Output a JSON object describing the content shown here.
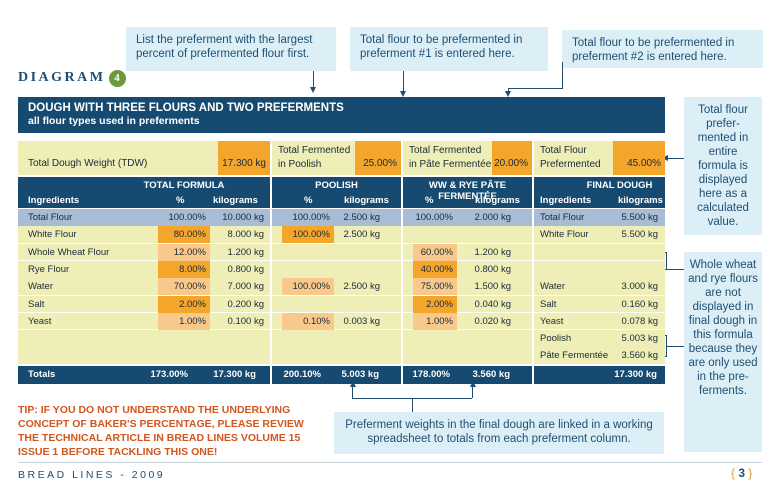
{
  "callouts": {
    "largest_first": "List the preferment with the largest percent of prefermented flour first.",
    "preferment1": "Total flour to be prefermented in preferment #1 is entered here.",
    "preferment2": "Total flour to be prefermented in preferment #2 is entered here.",
    "total_preferment": "Total flour prefer-mented in entire formula is displayed here as a calculated value.",
    "not_displayed": "Whole wheat and rye flours are not displayed in final dough in this formula because they are only used in the pre-ferments.",
    "linked": "Preferment weights in the final dough are linked in a working spreadsheet to totals from each preferment column."
  },
  "diagram": {
    "label": "DIAGRAM",
    "number": "4"
  },
  "title": {
    "main": "DOUGH WITH THREE FLOURS AND TWO PREFERMENTS",
    "sub": "all flour types used in preferments"
  },
  "summary": {
    "tdw_label": "Total Dough Weight (TDW)",
    "tdw_value": "17.300 kg",
    "poolish_label_1": "Total Fermented",
    "poolish_label_2": "in Poolish",
    "poolish_value": "25.00%",
    "pf_label_1": "Total Fermented",
    "pf_label_2": "in Pâte Fermentée",
    "pf_value": "20.00%",
    "tf_label_1": "Total Flour",
    "tf_label_2": "Prefermented",
    "tf_value": "45.00%"
  },
  "headers": {
    "ingredients": "Ingredients",
    "total_formula": "TOTAL FORMULA",
    "poolish": "POOLISH",
    "pate": "WW & RYE PÂTE FERMENTÉE",
    "final": "FINAL DOUGH",
    "pct": "%",
    "kg": "kilograms"
  },
  "rows": [
    {
      "name": "Total Flour",
      "tf_pct": "100.00%",
      "tf_kg": "10.000 kg",
      "p_pct": "100.00%",
      "p_kg": "2.500 kg",
      "pf_pct": "100.00%",
      "pf_kg": "2.000 kg",
      "fd_name": "Total Flour",
      "fd_kg": "5.500 kg"
    },
    {
      "name": "White Flour",
      "tf_pct": "80.00%",
      "tf_kg": "8.000 kg",
      "p_pct": "100.00%",
      "p_kg": "2.500 kg",
      "pf_pct": "",
      "pf_kg": "",
      "fd_name": "White Flour",
      "fd_kg": "5.500 kg"
    },
    {
      "name": "Whole Wheat Flour",
      "tf_pct": "12.00%",
      "tf_kg": "1.200 kg",
      "p_pct": "",
      "p_kg": "",
      "pf_pct": "60.00%",
      "pf_kg": "1.200 kg",
      "fd_name": "",
      "fd_kg": ""
    },
    {
      "name": "Rye Flour",
      "tf_pct": "8.00%",
      "tf_kg": "0.800 kg",
      "p_pct": "",
      "p_kg": "",
      "pf_pct": "40.00%",
      "pf_kg": "0.800 kg",
      "fd_name": "",
      "fd_kg": ""
    },
    {
      "name": "Water",
      "tf_pct": "70.00%",
      "tf_kg": "7.000 kg",
      "p_pct": "100.00%",
      "p_kg": "2.500 kg",
      "pf_pct": "75.00%",
      "pf_kg": "1.500 kg",
      "fd_name": "Water",
      "fd_kg": "3.000 kg"
    },
    {
      "name": "Salt",
      "tf_pct": "2.00%",
      "tf_kg": "0.200 kg",
      "p_pct": "",
      "p_kg": "",
      "pf_pct": "2.00%",
      "pf_kg": "0.040 kg",
      "fd_name": "Salt",
      "fd_kg": "0.160 kg"
    },
    {
      "name": "Yeast",
      "tf_pct": "1.00%",
      "tf_kg": "0.100 kg",
      "p_pct": "0.10%",
      "p_kg": "0.003 kg",
      "pf_pct": "1.00%",
      "pf_kg": "0.020 kg",
      "fd_name": "Yeast",
      "fd_kg": "0.078 kg"
    },
    {
      "name": "",
      "tf_pct": "",
      "tf_kg": "",
      "p_pct": "",
      "p_kg": "",
      "pf_pct": "",
      "pf_kg": "",
      "fd_name": "Poolish",
      "fd_kg": "5.003 kg"
    },
    {
      "name": "",
      "tf_pct": "",
      "tf_kg": "",
      "p_pct": "",
      "p_kg": "",
      "pf_pct": "",
      "pf_kg": "",
      "fd_name": "Pâte Fermentée",
      "fd_kg": "3.560 kg"
    }
  ],
  "totals": {
    "label": "Totals",
    "tf_pct": "173.00%",
    "tf_kg": "17.300 kg",
    "p_pct": "200.10%",
    "p_kg": "5.003 kg",
    "pf_pct": "178.00%",
    "pf_kg": "3.560 kg",
    "fd_kg": "17.300 kg"
  },
  "tip": "TIP: IF YOU DO NOT UNDERSTAND THE UNDERLYING CONCEPT OF BAKER'S PERCENTAGE, PLEASE REVIEW THE TECHNICAL ARTICLE IN BREAD LINES VOLUME 15 ISSUE 1 BEFORE TACKLING THIS ONE!",
  "footer": {
    "text": "BREAD LINES - 2009",
    "page": "3"
  },
  "colors": {
    "navy": "#164a70",
    "orange": "#f4a52c",
    "light_orange": "#f8c98a",
    "cream": "#eeeeb6",
    "blue_row": "#a9bcd6",
    "callout": "#dceff7"
  }
}
